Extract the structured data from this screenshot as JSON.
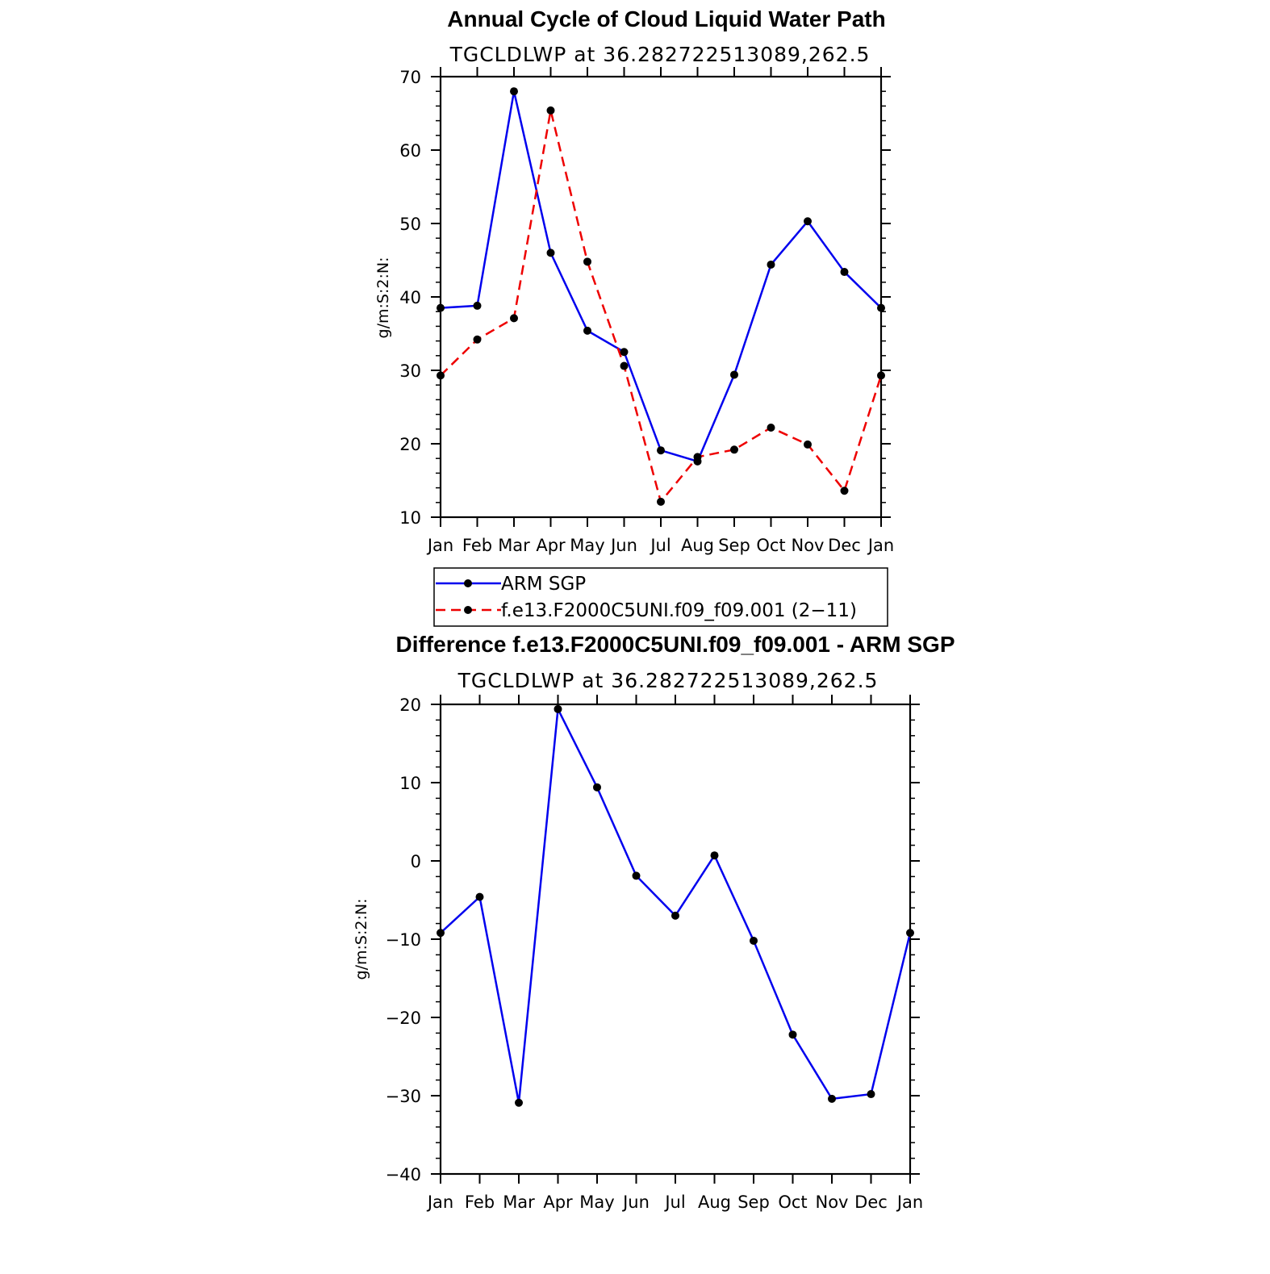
{
  "chart_data": [
    {
      "type": "line",
      "title": "Annual Cycle of Cloud Liquid Water Path",
      "subtitle": "TGCLDLWP  at  36.282722513089,262.5",
      "xlabel": "",
      "ylabel": "g/m:S:2:N:",
      "categories": [
        "Jan",
        "Feb",
        "Mar",
        "Apr",
        "May",
        "Jun",
        "Jul",
        "Aug",
        "Sep",
        "Oct",
        "Nov",
        "Dec",
        "Jan"
      ],
      "ylim": [
        10,
        70
      ],
      "yticks": [
        "10",
        "20",
        "30",
        "40",
        "50",
        "60",
        "70"
      ],
      "grid": false,
      "legend_position": "bottom",
      "series": [
        {
          "name": "ARM SGP",
          "color": "#0000ee",
          "style": "solid",
          "values": [
            38.5,
            38.8,
            68.0,
            46.0,
            35.4,
            32.5,
            19.1,
            17.6,
            29.4,
            44.4,
            50.3,
            43.4,
            38.5
          ]
        },
        {
          "name": "f.e13.F2000C5UNI.f09_f09.001 (2−11)",
          "color": "#ee0000",
          "style": "dashed",
          "values": [
            29.3,
            34.2,
            37.1,
            65.4,
            44.8,
            30.6,
            12.1,
            18.2,
            19.2,
            22.2,
            19.9,
            13.6,
            29.3
          ]
        }
      ]
    },
    {
      "type": "line",
      "title": "Difference f.e13.F2000C5UNI.f09_f09.001 - ARM SGP",
      "subtitle": "TGCLDLWP  at  36.282722513089,262.5",
      "xlabel": "",
      "ylabel": "g/m:S:2:N:",
      "categories": [
        "Jan",
        "Feb",
        "Mar",
        "Apr",
        "May",
        "Jun",
        "Jul",
        "Aug",
        "Sep",
        "Oct",
        "Nov",
        "Dec",
        "Jan"
      ],
      "ylim": [
        -40,
        20
      ],
      "yticks": [
        "−40",
        "−30",
        "−20",
        "−10",
        "0",
        "10",
        "20"
      ],
      "grid": false,
      "series": [
        {
          "name": "Difference",
          "color": "#0000ee",
          "style": "solid",
          "values": [
            -9.2,
            -4.6,
            -30.9,
            19.4,
            9.4,
            -1.9,
            -7.0,
            0.7,
            -10.2,
            -22.2,
            -30.4,
            -29.8,
            -9.2
          ]
        }
      ]
    }
  ]
}
